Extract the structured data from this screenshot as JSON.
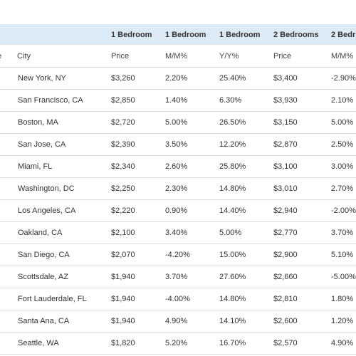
{
  "table": {
    "group_headers": [
      "",
      "",
      "1 Bedroom",
      "1 Bedroom",
      "1 Bedroom",
      "2 Bedrooms",
      "2 Bedr"
    ],
    "sub_headers": [
      "ge",
      "City",
      "Price",
      "M/M%",
      "Y/Y%",
      "Price",
      "M/M%"
    ],
    "rows": [
      {
        "city": "New York, NY",
        "price_1br": "$3,260",
        "mm_1br": "2.20%",
        "yy_1br": "25.40%",
        "price_2br": "$3,400",
        "mm_2br": "-2.90%"
      },
      {
        "city": "San Francisco, CA",
        "price_1br": "$2,850",
        "mm_1br": "1.40%",
        "yy_1br": "6.30%",
        "price_2br": "$3,930",
        "mm_2br": "2.10%"
      },
      {
        "city": "Boston, MA",
        "price_1br": "$2,720",
        "mm_1br": "5.00%",
        "yy_1br": "26.50%",
        "price_2br": "$3,150",
        "mm_2br": "5.00%"
      },
      {
        "city": "San Jose, CA",
        "price_1br": "$2,390",
        "mm_1br": "3.50%",
        "yy_1br": "12.20%",
        "price_2br": "$2,870",
        "mm_2br": "2.50%"
      },
      {
        "city": "Miami, FL",
        "price_1br": "$2,340",
        "mm_1br": "2.60%",
        "yy_1br": "25.80%",
        "price_2br": "$3,100",
        "mm_2br": "3.00%"
      },
      {
        "city": "Washington, DC",
        "price_1br": "$2,250",
        "mm_1br": "2.30%",
        "yy_1br": "14.80%",
        "price_2br": "$3,010",
        "mm_2br": "2.70%"
      },
      {
        "city": "Los Angeles, CA",
        "price_1br": "$2,220",
        "mm_1br": "0.90%",
        "yy_1br": "14.40%",
        "price_2br": "$2,940",
        "mm_2br": "-2.00%"
      },
      {
        "city": "Oakland, CA",
        "price_1br": "$2,100",
        "mm_1br": "3.40%",
        "yy_1br": "5.00%",
        "price_2br": "$2,770",
        "mm_2br": "3.70%"
      },
      {
        "city": "San Diego, CA",
        "price_1br": "$2,070",
        "mm_1br": "-4.20%",
        "yy_1br": "15.00%",
        "price_2br": "$2,900",
        "mm_2br": "5.10%"
      },
      {
        "city": "Scottsdale, AZ",
        "price_1br": "$1,940",
        "mm_1br": "3.70%",
        "yy_1br": "27.60%",
        "price_2br": "$2,660",
        "mm_2br": "-5.00%"
      },
      {
        "city": "Fort Lauderdale, FL",
        "price_1br": "$1,940",
        "mm_1br": "-4.00%",
        "yy_1br": "14.80%",
        "price_2br": "$2,810",
        "mm_2br": "1.80%"
      },
      {
        "city": "Santa Ana, CA",
        "price_1br": "$1,940",
        "mm_1br": "4.90%",
        "yy_1br": "14.10%",
        "price_2br": "$2,600",
        "mm_2br": "1.20%"
      },
      {
        "city": "Seattle, WA",
        "price_1br": "$1,820",
        "mm_1br": "5.20%",
        "yy_1br": "16.70%",
        "price_2br": "$2,570",
        "mm_2br": "4.90%"
      }
    ]
  },
  "colors": {
    "header_band": "#dcebf6",
    "row_divider": "#dedede",
    "text": "#333333"
  }
}
